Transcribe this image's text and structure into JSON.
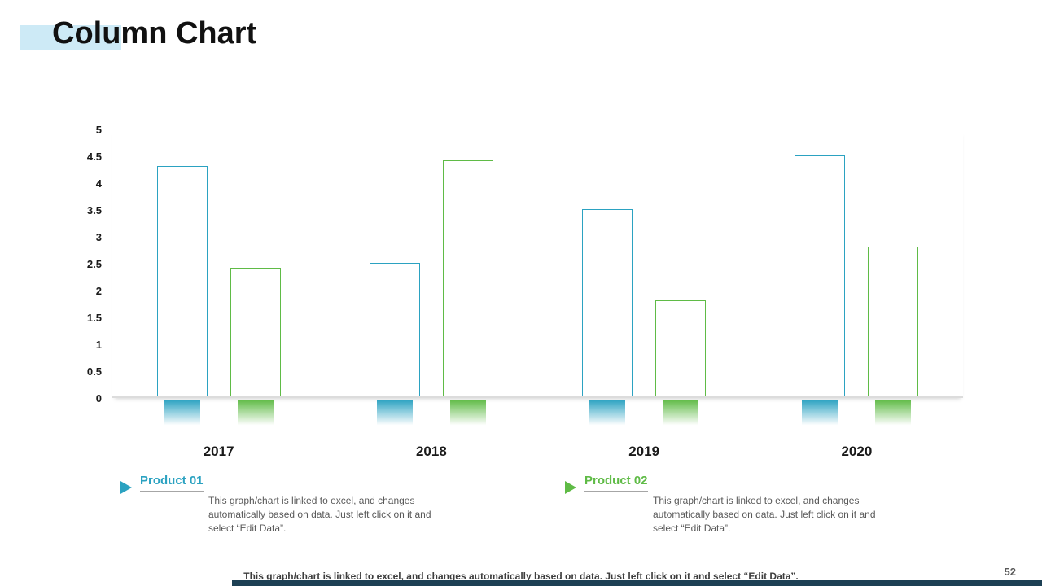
{
  "slide": {
    "title": "Column Chart",
    "page_number": "52",
    "footer_note": "This graph/chart is linked to excel, and changes automatically based on data. Just left click on it and select “Edit Data”."
  },
  "chart_data": {
    "type": "bar",
    "title": "",
    "categories": [
      "2017",
      "2018",
      "2019",
      "2020"
    ],
    "series": [
      {
        "name": "Product 01",
        "color": "#2BA2C1",
        "values": [
          4.3,
          2.5,
          3.5,
          4.5
        ]
      },
      {
        "name": "Product 02",
        "color": "#5FBB46",
        "values": [
          2.4,
          4.4,
          1.8,
          2.8
        ]
      }
    ],
    "ylim": [
      0,
      5
    ],
    "ytick_step": 0.5,
    "yticks": [
      "5",
      "4.5",
      "4",
      "3.5",
      "3",
      "2.5",
      "2",
      "1.5",
      "1",
      "0.5",
      "0"
    ],
    "grid": false,
    "legend_position": "bottom",
    "bar_style": "outlined-with-gradient-base"
  },
  "legend": {
    "items": [
      {
        "label": "Product 01",
        "color": "#2BA2C1",
        "description": "This graph/chart is linked to excel, and changes automatically based on data. Just left click on it and select “Edit Data”."
      },
      {
        "label": "Product 02",
        "color": "#5FBB46",
        "description": "This graph/chart is linked to excel, and changes automatically based on data. Just left click on it and select “Edit Data”."
      }
    ]
  },
  "theme": {
    "title_highlight": "#CDEAF6",
    "accent_bar": "#1D4054",
    "baseline": "#DCDCDC"
  }
}
